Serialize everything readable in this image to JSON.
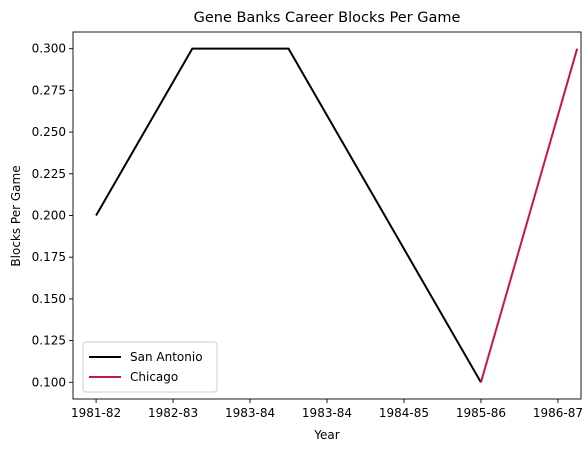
{
  "chart_data": {
    "type": "line",
    "title": "Gene Banks Career Blocks Per Game",
    "xlabel": "Year",
    "ylabel": "Blocks Per Game",
    "x_tick_labels": [
      "1981-82",
      "1982-83",
      "1983-84",
      "1983-84",
      "1984-85",
      "1985-86",
      "1986-87"
    ],
    "y_ticks": [
      0.1,
      0.125,
      0.15,
      0.175,
      0.2,
      0.225,
      0.25,
      0.275,
      0.3
    ],
    "y_tick_labels": [
      "0.100",
      "0.125",
      "0.150",
      "0.175",
      "0.200",
      "0.225",
      "0.250",
      "0.275",
      "0.300"
    ],
    "xlim": [
      -0.3,
      6.3
    ],
    "ylim": [
      0.09,
      0.31
    ],
    "grid": false,
    "legend_position": "lower-left",
    "series": [
      {
        "name": "San Antonio",
        "color": "#000000",
        "x": [
          0,
          1.25,
          2.5,
          5
        ],
        "y": [
          0.2,
          0.3,
          0.3,
          0.1
        ]
      },
      {
        "name": "Chicago",
        "color": "#c8154a",
        "x": [
          5,
          6.25
        ],
        "y": [
          0.1,
          0.3
        ]
      }
    ]
  }
}
